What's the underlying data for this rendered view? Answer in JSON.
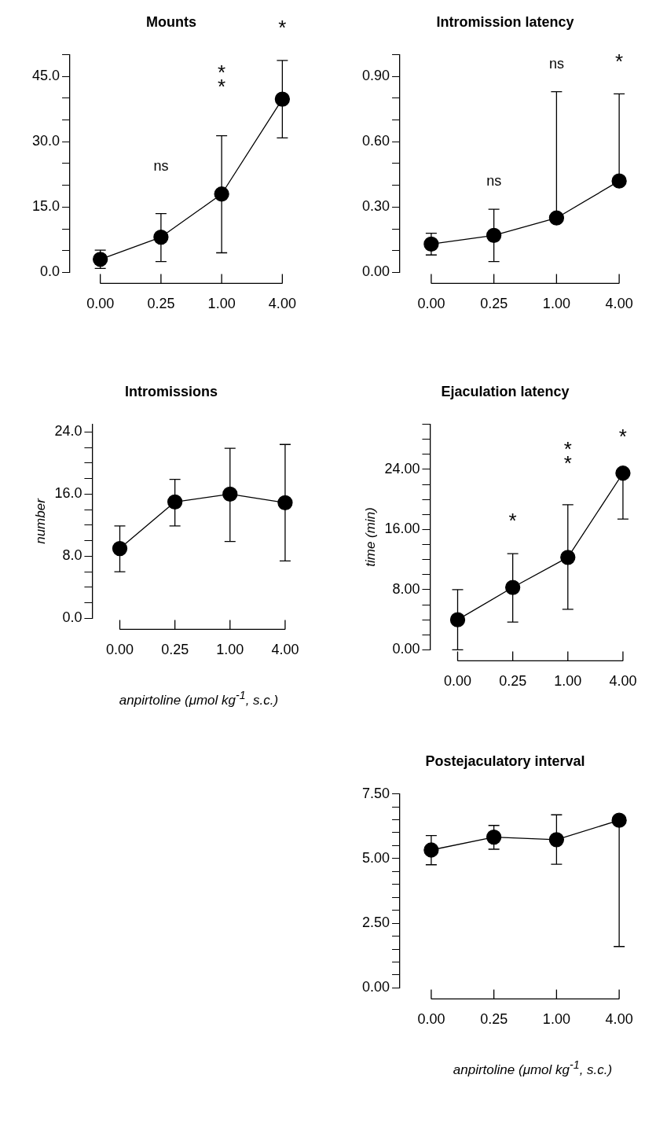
{
  "chart_data": [
    {
      "type": "line",
      "title": "Mounts",
      "categories": [
        "0.00",
        "0.25",
        "1.00",
        "4.00"
      ],
      "values": [
        3.0,
        8.1,
        18.0,
        39.8
      ],
      "errors": [
        [
          0.9,
          5.1
        ],
        [
          2.5,
          13.5
        ],
        [
          4.5,
          31.4
        ],
        [
          30.9,
          48.7
        ]
      ],
      "color": "#000000",
      "marker": "circle",
      "line_style": "solid",
      "grid": false,
      "ylim": [
        0,
        50
      ],
      "yticks": [
        {
          "value": 0,
          "label": "0.0"
        },
        {
          "value": 5,
          "label": null
        },
        {
          "value": 10,
          "label": null
        },
        {
          "value": 15,
          "label": "15.0"
        },
        {
          "value": 20,
          "label": null
        },
        {
          "value": 25,
          "label": null
        },
        {
          "value": 30,
          "label": "30.0"
        },
        {
          "value": 35,
          "label": null
        },
        {
          "value": 40,
          "label": null
        },
        {
          "value": 45,
          "label": "45.0"
        },
        {
          "value": 50,
          "label": null
        }
      ],
      "annotations": [
        "ns",
        "**",
        "*"
      ]
    },
    {
      "type": "line",
      "title": "Intromission latency",
      "categories": [
        "0.00",
        "0.25",
        "1.00",
        "4.00"
      ],
      "values": [
        0.13,
        0.17,
        0.25,
        0.42
      ],
      "errors": [
        [
          0.08,
          0.18
        ],
        [
          0.05,
          0.29
        ],
        [
          0.25,
          0.83
        ],
        [
          0.42,
          0.82
        ]
      ],
      "color": "#000000",
      "marker": "circle",
      "line_style": "solid",
      "grid": false,
      "ylim": [
        0,
        1.0
      ],
      "yticks": [
        {
          "value": 0,
          "label": "0.00"
        },
        {
          "value": 0.1,
          "label": null
        },
        {
          "value": 0.2,
          "label": null
        },
        {
          "value": 0.3,
          "label": "0.30"
        },
        {
          "value": 0.4,
          "label": null
        },
        {
          "value": 0.5,
          "label": null
        },
        {
          "value": 0.6,
          "label": "0.60"
        },
        {
          "value": 0.7,
          "label": null
        },
        {
          "value": 0.8,
          "label": null
        },
        {
          "value": 0.9,
          "label": "0.90"
        },
        {
          "value": 1.0,
          "label": null
        }
      ],
      "annotations": [
        "ns",
        "ns",
        "*"
      ]
    },
    {
      "type": "line",
      "title": "Intromissions",
      "ylabel": "number",
      "xlabel": "anpirtoline (μmol kg$^{-1}$, s.c.)",
      "categories": [
        "0.00",
        "0.25",
        "1.00",
        "4.00"
      ],
      "values": [
        9.0,
        15.0,
        16.0,
        14.9
      ],
      "errors": [
        [
          6.0,
          11.9
        ],
        [
          11.9,
          17.9
        ],
        [
          9.9,
          21.9
        ],
        [
          7.4,
          22.4
        ]
      ],
      "color": "#000000",
      "marker": "circle",
      "line_style": "solid",
      "grid": false,
      "ylim": [
        0,
        25
      ],
      "yticks": [
        {
          "value": 0,
          "label": "0.0"
        },
        {
          "value": 2,
          "label": null
        },
        {
          "value": 4,
          "label": null
        },
        {
          "value": 6,
          "label": null
        },
        {
          "value": 8,
          "label": "8.0"
        },
        {
          "value": 10,
          "label": null
        },
        {
          "value": 12,
          "label": null
        },
        {
          "value": 14,
          "label": null
        },
        {
          "value": 16,
          "label": "16.0"
        },
        {
          "value": 18,
          "label": null
        },
        {
          "value": 20,
          "label": null
        },
        {
          "value": 22,
          "label": null
        },
        {
          "value": 24,
          "label": "24.0"
        }
      ]
    },
    {
      "type": "line",
      "title": "Ejaculation latency",
      "ylabel": "time (min)",
      "categories": [
        "0.00",
        "0.25",
        "1.00",
        "4.00"
      ],
      "values": [
        4.0,
        8.3,
        12.3,
        23.5
      ],
      "errors": [
        [
          0,
          8.0
        ],
        [
          3.7,
          12.8
        ],
        [
          5.4,
          19.3
        ],
        [
          17.4,
          23.5
        ]
      ],
      "color": "#000000",
      "marker": "circle",
      "line_style": "solid",
      "grid": false,
      "ylim": [
        0,
        30
      ],
      "yticks": [
        {
          "value": 0,
          "label": "0.00"
        },
        {
          "value": 2,
          "label": null
        },
        {
          "value": 4,
          "label": null
        },
        {
          "value": 6,
          "label": null
        },
        {
          "value": 8,
          "label": "8.00"
        },
        {
          "value": 10,
          "label": null
        },
        {
          "value": 12,
          "label": null
        },
        {
          "value": 14,
          "label": null
        },
        {
          "value": 16,
          "label": "16.00"
        },
        {
          "value": 18,
          "label": null
        },
        {
          "value": 20,
          "label": null
        },
        {
          "value": 22,
          "label": null
        },
        {
          "value": 24,
          "label": "24.00"
        },
        {
          "value": 26,
          "label": null
        },
        {
          "value": 28,
          "label": null
        },
        {
          "value": 30,
          "label": null
        }
      ],
      "annotations": [
        "*",
        "**",
        "*"
      ]
    },
    {
      "type": "line",
      "title": "Postejaculatory interval",
      "xlabel": "anpirtoline (μmol kg$^{-1}$, s.c.)",
      "categories": [
        "0.00",
        "0.25",
        "1.00",
        "4.00"
      ],
      "values": [
        5.33,
        5.83,
        5.73,
        6.48
      ],
      "errors": [
        [
          4.76,
          5.89
        ],
        [
          5.36,
          6.28
        ],
        [
          4.78,
          6.69
        ],
        [
          1.6,
          6.48
        ]
      ],
      "color": "#000000",
      "marker": "circle",
      "line_style": "solid",
      "grid": false,
      "ylim": [
        0,
        7.5
      ],
      "yticks": [
        {
          "value": 0,
          "label": "0.00"
        },
        {
          "value": 0.5,
          "label": null
        },
        {
          "value": 1,
          "label": null
        },
        {
          "value": 1.5,
          "label": null
        },
        {
          "value": 2,
          "label": null
        },
        {
          "value": 2.5,
          "label": "2.50"
        },
        {
          "value": 3,
          "label": null
        },
        {
          "value": 3.5,
          "label": null
        },
        {
          "value": 4,
          "label": null
        },
        {
          "value": 4.5,
          "label": null
        },
        {
          "value": 5,
          "label": "5.00"
        },
        {
          "value": 5.5,
          "label": null
        },
        {
          "value": 6,
          "label": null
        },
        {
          "value": 6.5,
          "label": null
        },
        {
          "value": 7,
          "label": null
        },
        {
          "value": 7.5,
          "label": "7.50"
        }
      ]
    }
  ]
}
